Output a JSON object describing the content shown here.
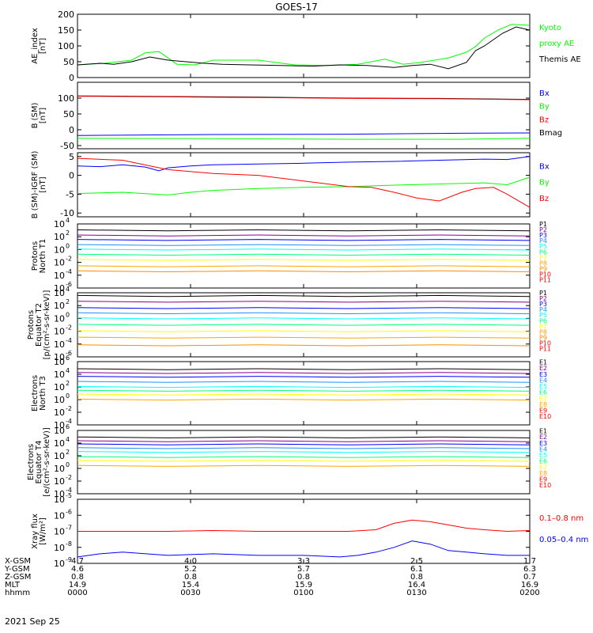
{
  "title": "GOES-17",
  "date": "2021 Sep 25",
  "colors": {
    "black": "#000000",
    "blue": "#0000ff",
    "green": "#00ff00",
    "red": "#ff0000",
    "p_bands": [
      "#000000",
      "#8b008b",
      "#0000ff",
      "#1e90ff",
      "#00ffff",
      "#00ff7f",
      "#ffff00",
      "#ffa500",
      "#ff8c00",
      "#ff0000",
      "#ff0000"
    ]
  },
  "chart_data": [
    {
      "type": "line",
      "ylabel": [
        "AE_index",
        "[nT]"
      ],
      "ylim": [
        0,
        200
      ],
      "yticks": [
        0,
        50,
        100,
        150,
        200
      ],
      "ytick_labels": [
        "0",
        "50",
        "100",
        "150",
        "200"
      ],
      "legend": [
        {
          "text": "Kyoto",
          "color": "#00ff00"
        },
        {
          "text": "proxy AE",
          "color": "#00ff00"
        },
        {
          "text": "Themis AE",
          "color": "#000000"
        }
      ],
      "series": [
        {
          "name": "Kyoto proxy AE",
          "color": "#00ff00",
          "x": [
            0,
            6,
            12,
            15,
            18,
            22,
            26,
            30,
            35,
            40,
            48,
            55,
            62,
            68,
            72,
            76,
            82,
            86,
            88,
            90,
            93,
            96,
            100
          ],
          "y": [
            40,
            45,
            55,
            78,
            82,
            42,
            40,
            55,
            55,
            55,
            40,
            38,
            42,
            58,
            42,
            48,
            62,
            80,
            98,
            125,
            150,
            168,
            165
          ]
        },
        {
          "name": "Themis AE",
          "color": "#000000",
          "x": [
            0,
            5,
            8,
            12,
            16,
            20,
            24,
            28,
            32,
            38,
            45,
            52,
            58,
            64,
            70,
            74,
            78,
            82,
            86,
            88,
            90,
            92,
            94,
            97,
            100
          ],
          "y": [
            40,
            45,
            42,
            50,
            65,
            55,
            50,
            45,
            42,
            40,
            38,
            36,
            40,
            38,
            32,
            38,
            42,
            28,
            48,
            85,
            100,
            120,
            140,
            160,
            150
          ]
        }
      ]
    },
    {
      "type": "line",
      "ylabel": [
        "B (SM)",
        "[nT]"
      ],
      "ylim": [
        -60,
        150
      ],
      "yticks": [
        -50,
        0,
        50,
        100
      ],
      "ytick_labels": [
        "-50",
        "0",
        "50",
        "100"
      ],
      "legend": [
        {
          "text": "Bx",
          "color": "#0000ff"
        },
        {
          "text": "By",
          "color": "#00ff00"
        },
        {
          "text": "Bz",
          "color": "#ff0000"
        },
        {
          "text": "Bmag",
          "color": "#000000"
        }
      ],
      "series": [
        {
          "name": "Bx",
          "color": "#0000ff",
          "x": [
            0,
            30,
            60,
            85,
            100
          ],
          "y": [
            -18,
            -15,
            -14,
            -11,
            -10
          ]
        },
        {
          "name": "By",
          "color": "#00ff00",
          "x": [
            0,
            30,
            60,
            85,
            100
          ],
          "y": [
            -27,
            -28,
            -30,
            -30,
            -27
          ]
        },
        {
          "name": "Bmag",
          "color": "#000000",
          "x": [
            0,
            20,
            40,
            60,
            80,
            100
          ],
          "y": [
            107,
            105,
            103,
            100,
            99,
            96
          ]
        },
        {
          "name": "Bz",
          "color": "#ff0000",
          "x": [
            0,
            20,
            40,
            60,
            80,
            100
          ],
          "y": [
            106,
            104,
            102,
            99,
            98,
            95
          ]
        }
      ]
    },
    {
      "type": "line",
      "ylabel": [
        "B (SM)-IGRF (SM)",
        "[nT]"
      ],
      "ylim": [
        -11,
        6
      ],
      "yticks": [
        -10,
        -5,
        0,
        5
      ],
      "ytick_labels": [
        "-10",
        "-5",
        "0",
        "5"
      ],
      "legend": [
        {
          "text": "Bx",
          "color": "#0000ff"
        },
        {
          "text": "By",
          "color": "#00ff00"
        },
        {
          "text": "Bz",
          "color": "#ff0000"
        }
      ],
      "series": [
        {
          "name": "Bx",
          "color": "#0000ff",
          "x": [
            0,
            5,
            10,
            15,
            18,
            20,
            25,
            30,
            40,
            50,
            60,
            70,
            80,
            90,
            95,
            100
          ],
          "y": [
            2.5,
            2.3,
            2.8,
            2.2,
            1.2,
            2.0,
            2.5,
            2.8,
            3.0,
            3.2,
            3.5,
            3.7,
            4.0,
            4.3,
            4.2,
            5.0
          ]
        },
        {
          "name": "By",
          "color": "#00ff00",
          "x": [
            0,
            10,
            20,
            25,
            30,
            40,
            50,
            60,
            70,
            80,
            90,
            95,
            100
          ],
          "y": [
            -4.8,
            -4.5,
            -5.2,
            -4.5,
            -4.0,
            -3.5,
            -3.2,
            -3.0,
            -2.6,
            -2.3,
            -2.0,
            -2.5,
            -0.5
          ]
        },
        {
          "name": "Bz",
          "color": "#ff0000",
          "x": [
            0,
            10,
            20,
            30,
            40,
            50,
            60,
            65,
            70,
            75,
            80,
            85,
            88,
            92,
            95,
            100
          ],
          "y": [
            4.5,
            4.0,
            1.5,
            0.5,
            0.0,
            -1.5,
            -3.0,
            -3.2,
            -4.5,
            -6.0,
            -6.8,
            -4.5,
            -3.5,
            -3.2,
            -5.0,
            -8.5
          ]
        }
      ]
    },
    {
      "type": "line",
      "log": true,
      "ylabel": [
        "Protons",
        "North T1"
      ],
      "ylim": [
        -6,
        4
      ],
      "yticks": [
        -6,
        -4,
        -2,
        0,
        2,
        4
      ],
      "ytick_labels": [
        "10",
        "10",
        "10",
        "10",
        "10",
        "10"
      ],
      "ytick_exps": [
        "-6",
        "-4",
        "-2",
        "0",
        "2",
        "4"
      ],
      "legend": [
        {
          "text": "P1",
          "color": "#000000"
        },
        {
          "text": "P2",
          "color": "#8b008b"
        },
        {
          "text": "P3",
          "color": "#0000ff"
        },
        {
          "text": "P4",
          "color": "#1e90ff"
        },
        {
          "text": "P5",
          "color": "#00ffff"
        },
        {
          "text": "P6",
          "color": "#00ff7f"
        },
        {
          "text": "P7",
          "color": "#ffff00"
        },
        {
          "text": "P8",
          "color": "#ffa500"
        },
        {
          "text": "P9",
          "color": "#ff8c00"
        },
        {
          "text": "P10",
          "color": "#ff0000"
        },
        {
          "text": "P11",
          "color": "#ff0000"
        }
      ],
      "bands": [
        3.0,
        2.2,
        1.5,
        0.7,
        0.0,
        -0.8,
        -1.6,
        -2.6,
        -3.4
      ]
    },
    {
      "type": "line",
      "log": true,
      "ylabel": [
        "Protons",
        "Equator T2",
        "[p/(cm²-s-sr-keV)]"
      ],
      "ylim": [
        -6,
        4
      ],
      "yticks": [
        -6,
        -4,
        -2,
        0,
        2,
        4
      ],
      "ytick_labels": [
        "10",
        "10",
        "10",
        "10",
        "10",
        "10"
      ],
      "ytick_exps": [
        "-6",
        "-4",
        "-2",
        "0",
        "2",
        "4"
      ],
      "legend": [
        {
          "text": "P1",
          "color": "#000000"
        },
        {
          "text": "P2",
          "color": "#8b008b"
        },
        {
          "text": "P3",
          "color": "#0000ff"
        },
        {
          "text": "P4",
          "color": "#1e90ff"
        },
        {
          "text": "P5",
          "color": "#00ffff"
        },
        {
          "text": "P6",
          "color": "#00ff7f"
        },
        {
          "text": "P7",
          "color": "#ffff00"
        },
        {
          "text": "P8",
          "color": "#ffa500"
        },
        {
          "text": "P9",
          "color": "#ff8c00"
        },
        {
          "text": "P10",
          "color": "#ff0000"
        },
        {
          "text": "P11",
          "color": "#ff0000"
        }
      ],
      "bands": [
        3.5,
        2.6,
        1.6,
        0.8,
        0.0,
        -1.0,
        -2.0,
        -3.0,
        -4.2
      ]
    },
    {
      "type": "line",
      "log": true,
      "ylabel": [
        "Electrons",
        "North T3"
      ],
      "ylim": [
        -4,
        6
      ],
      "yticks": [
        -4,
        -2,
        0,
        2,
        4,
        6
      ],
      "ytick_labels": [
        "10",
        "10",
        "10",
        "10",
        "10",
        "10"
      ],
      "ytick_exps": [
        "-4",
        "-2",
        "0",
        "2",
        "4",
        "6"
      ],
      "legend": [
        {
          "text": "E1",
          "color": "#000000"
        },
        {
          "text": "E2",
          "color": "#8b008b"
        },
        {
          "text": "E3",
          "color": "#0000ff"
        },
        {
          "text": "E4",
          "color": "#1e90ff"
        },
        {
          "text": "E5",
          "color": "#00ffff"
        },
        {
          "text": "E6",
          "color": "#00ff7f"
        },
        {
          "text": "E7",
          "color": "#ffff00"
        },
        {
          "text": "E8",
          "color": "#ffa500"
        },
        {
          "text": "E9",
          "color": "#ff0000"
        },
        {
          "text": "E10",
          "color": "#ff0000"
        }
      ],
      "bands": [
        4.8,
        4.2,
        3.6,
        2.8,
        2.0,
        1.4,
        0.8,
        0.0
      ]
    },
    {
      "type": "line",
      "log": true,
      "ylabel": [
        "Electrons",
        "Equator T4",
        "[e/(cm²-s-sr-keV)]"
      ],
      "ylim": [
        -4,
        6
      ],
      "yticks": [
        -4,
        -2,
        0,
        2,
        4,
        6
      ],
      "ytick_labels": [
        "10",
        "10",
        "10",
        "10",
        "10",
        "10"
      ],
      "ytick_exps": [
        "-4",
        "-2",
        "0",
        "2",
        "4",
        "6"
      ],
      "legend": [
        {
          "text": "E1",
          "color": "#000000"
        },
        {
          "text": "E2",
          "color": "#8b008b"
        },
        {
          "text": "E3",
          "color": "#0000ff"
        },
        {
          "text": "E4",
          "color": "#1e90ff"
        },
        {
          "text": "E5",
          "color": "#00ffff"
        },
        {
          "text": "E6",
          "color": "#00ff7f"
        },
        {
          "text": "E7",
          "color": "#ffff00"
        },
        {
          "text": "E8",
          "color": "#ffa500"
        },
        {
          "text": "E9",
          "color": "#ff0000"
        },
        {
          "text": "E10",
          "color": "#ff0000"
        }
      ],
      "bands": [
        4.9,
        4.3,
        3.8,
        3.2,
        2.6,
        1.8,
        1.2,
        0.4
      ]
    },
    {
      "type": "line",
      "log": true,
      "ylabel": [
        "Xray flux",
        "[W/m²]"
      ],
      "ylim": [
        -9,
        -5
      ],
      "yticks": [
        -9,
        -8,
        -7,
        -6,
        -5
      ],
      "ytick_labels": [
        "10",
        "10",
        "10",
        "10",
        "10"
      ],
      "ytick_exps": [
        "-9",
        "-8",
        "-7",
        "-6",
        "-5"
      ],
      "legend": [
        {
          "text": "0.1–0.8 nm",
          "color": "#ff0000"
        },
        {
          "text": "0.05–0.4 nm",
          "color": "#0000ff"
        }
      ],
      "series": [
        {
          "name": "0.1–0.8 nm",
          "color": "#ff0000",
          "x": [
            0,
            10,
            20,
            30,
            40,
            50,
            60,
            66,
            70,
            74,
            78,
            82,
            86,
            90,
            95,
            100
          ],
          "y": [
            -7.0,
            -7.0,
            -7.0,
            -6.95,
            -7.0,
            -7.0,
            -7.0,
            -6.9,
            -6.5,
            -6.3,
            -6.4,
            -6.6,
            -6.8,
            -6.9,
            -7.0,
            -6.95
          ]
        },
        {
          "name": "0.05–0.4 nm",
          "color": "#0000ff",
          "x": [
            0,
            5,
            10,
            20,
            30,
            40,
            50,
            58,
            62,
            66,
            70,
            74,
            78,
            82,
            86,
            90,
            95,
            100
          ],
          "y": [
            -8.6,
            -8.4,
            -8.3,
            -8.5,
            -8.4,
            -8.5,
            -8.5,
            -8.6,
            -8.5,
            -8.3,
            -8.0,
            -7.6,
            -7.8,
            -8.2,
            -8.3,
            -8.4,
            -8.5,
            -8.5
          ]
        }
      ]
    }
  ],
  "footer": {
    "rows": [
      {
        "label": "X-GSM",
        "values": [
          "4.7",
          "4.0",
          "3.3",
          "2.5",
          "1.7"
        ]
      },
      {
        "label": "Y-GSM",
        "values": [
          "4.6",
          "5.2",
          "5.7",
          "6.1",
          "6.3"
        ]
      },
      {
        "label": "Z-GSM",
        "values": [
          "0.8",
          "0.8",
          "0.8",
          "0.8",
          "0.7"
        ]
      },
      {
        "label": "MLT",
        "values": [
          "14.9",
          "15.4",
          "15.9",
          "16.4",
          "16.9"
        ]
      },
      {
        "label": "hhmm",
        "values": [
          "0000",
          "0030",
          "0100",
          "0130",
          "0200"
        ]
      }
    ]
  }
}
